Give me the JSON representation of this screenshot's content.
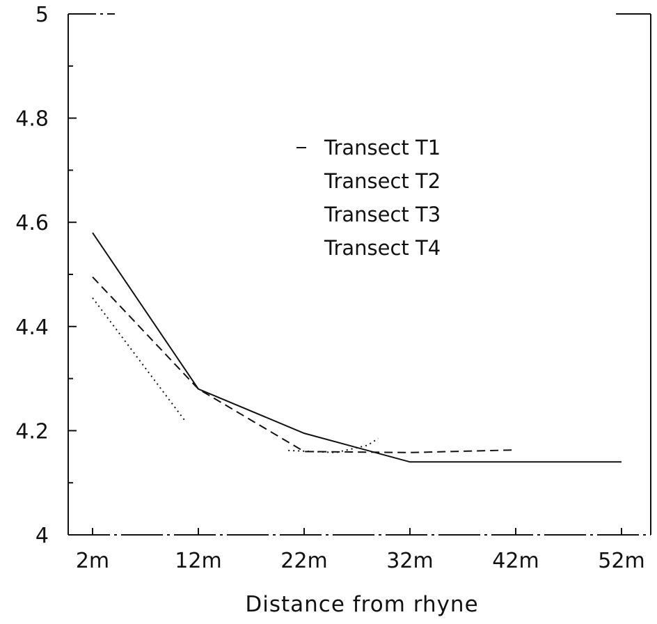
{
  "chart_data": {
    "type": "line",
    "title": "",
    "xlabel": "Distance from rhyne",
    "ylabel": "",
    "categories": [
      "2m",
      "12m",
      "22m",
      "32m",
      "42m",
      "52m"
    ],
    "ylim": [
      4,
      5
    ],
    "yticks": [
      4,
      4.2,
      4.4,
      4.6,
      4.8,
      5
    ],
    "ytick_labels": [
      "4",
      "4.2",
      "4.4",
      "4.6",
      "4.8",
      "5"
    ],
    "grid": false,
    "legend_position": "top-center",
    "series": [
      {
        "name": "Transect T1",
        "style": "solid",
        "color": "#111111",
        "points": [
          [
            0,
            4.58
          ],
          [
            1,
            4.28
          ],
          [
            2,
            4.195
          ],
          [
            3,
            4.14
          ],
          [
            4,
            4.14
          ],
          [
            5,
            4.14
          ]
        ]
      },
      {
        "name": "Transect T2",
        "style": "dashed",
        "color": "#111111",
        "points": [
          [
            0,
            4.495
          ],
          [
            1,
            4.28
          ],
          [
            2,
            4.16
          ],
          [
            3,
            4.158
          ],
          [
            4,
            4.163
          ]
        ]
      },
      {
        "name": "Transect T3",
        "style": "dotted",
        "color": "#111111",
        "points": [
          [
            0,
            4.455
          ],
          [
            0.87,
            4.22
          ]
        ]
      },
      {
        "name": "Transect T4",
        "style": "dotted",
        "color": "#111111",
        "points": [
          [
            1.85,
            4.162
          ],
          [
            2.3,
            4.158
          ],
          [
            2.6,
            4.172
          ],
          [
            2.7,
            4.185
          ]
        ]
      }
    ]
  }
}
